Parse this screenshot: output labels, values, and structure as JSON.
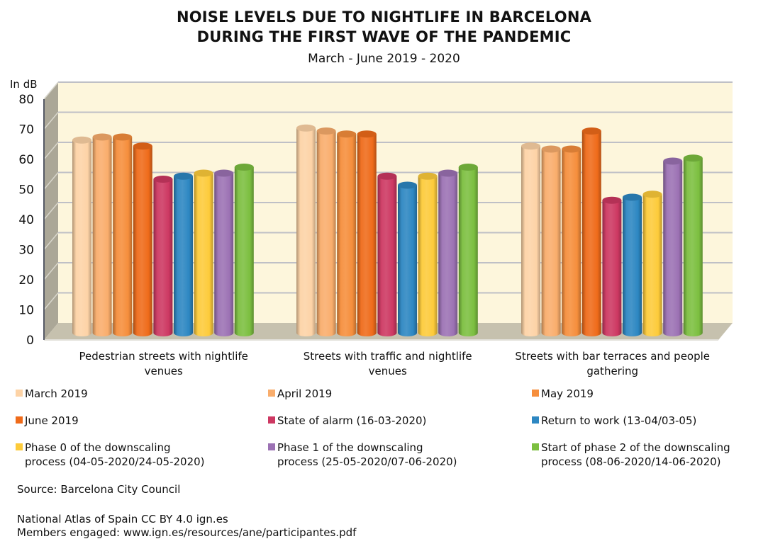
{
  "header": {
    "title_line1": "NOISE LEVELS DUE TO NIGHTLIFE IN BARCELONA",
    "title_line2": "DURING THE FIRST WAVE OF THE PANDEMIC",
    "subtitle": "March - June 2019 - 2020"
  },
  "chart_data": {
    "type": "bar",
    "style": "3d-cylinder",
    "title": "NOISE LEVELS DUE TO NIGHTLIFE IN BARCELONA DURING THE FIRST WAVE OF THE PANDEMIC",
    "subtitle": "March - June 2019 - 2020",
    "xlabel": "",
    "ylabel": "In dB",
    "ylim": [
      0,
      80
    ],
    "yticks": [
      0,
      10,
      20,
      30,
      40,
      50,
      60,
      70,
      80
    ],
    "grid": true,
    "legend_position": "bottom",
    "categories": [
      "Pedestrian streets with nightlife venues",
      "Streets with traffic and nightlife venues",
      "Streets with bar terraces and people gathering"
    ],
    "category_lines": [
      [
        "Pedestrian streets with nightlife",
        "venues"
      ],
      [
        "Streets with traffic and nightlife",
        "venues"
      ],
      [
        "Streets with bar terraces and people",
        "gathering"
      ]
    ],
    "series": [
      {
        "name": "March 2019",
        "color": "#FDD3A6",
        "values": [
          65,
          69,
          63
        ]
      },
      {
        "name": "April 2019",
        "color": "#F9AD6C",
        "values": [
          66,
          68,
          62
        ]
      },
      {
        "name": "May 2019",
        "color": "#F68E3C",
        "values": [
          66,
          67,
          62
        ]
      },
      {
        "name": "June 2019",
        "color": "#EF6B1A",
        "values": [
          63,
          67,
          68
        ]
      },
      {
        "name": "State of alarm (16-03-2020)",
        "color": "#CD3862",
        "values": [
          52,
          53,
          45
        ]
      },
      {
        "name": "Return to work (13-04/03-05)",
        "color": "#2D87C2",
        "values": [
          53,
          50,
          46
        ]
      },
      {
        "name": "Phase 0 of the downscaling process (04-05-2020/24-05-2020)",
        "color": "#FDCB3A",
        "values": [
          54,
          53,
          47
        ]
      },
      {
        "name": "Phase 1 of the downscaling process (25-05-2020/07-06-2020)",
        "color": "#9C72B4",
        "values": [
          54,
          54,
          58
        ]
      },
      {
        "name": "Start of phase 2 of the downscaling process (08-06-2020/14-06-2020)",
        "color": "#7CBF40",
        "values": [
          56,
          56,
          59
        ]
      }
    ]
  },
  "legend": [
    {
      "line1": "March 2019",
      "line2": ""
    },
    {
      "line1": "April 2019",
      "line2": ""
    },
    {
      "line1": "May 2019",
      "line2": ""
    },
    {
      "line1": "June 2019",
      "line2": ""
    },
    {
      "line1": "State of alarm (16-03-2020)",
      "line2": ""
    },
    {
      "line1": "Return to work (13-04/03-05)",
      "line2": ""
    },
    {
      "line1": "Phase 0 of the downscaling",
      "line2": "process (04-05-2020/24-05-2020)"
    },
    {
      "line1": "Phase 1 of the downscaling",
      "line2": "process (25-05-2020/07-06-2020)"
    },
    {
      "line1": "Start of phase 2 of the downscaling",
      "line2": "process (08-06-2020/14-06-2020)"
    }
  ],
  "footer": {
    "source": "Source: Barcelona City Council",
    "atlas": "National Atlas of Spain CC BY 4.0 ign.es",
    "members": "Members engaged: www.ign.es/resources/ane/participantes.pdf"
  },
  "theme": {
    "wall": "#FDF6DC",
    "side_wall": "#ABA797",
    "floor": "#C6C1AE",
    "gridline": "#BFC0C6"
  }
}
